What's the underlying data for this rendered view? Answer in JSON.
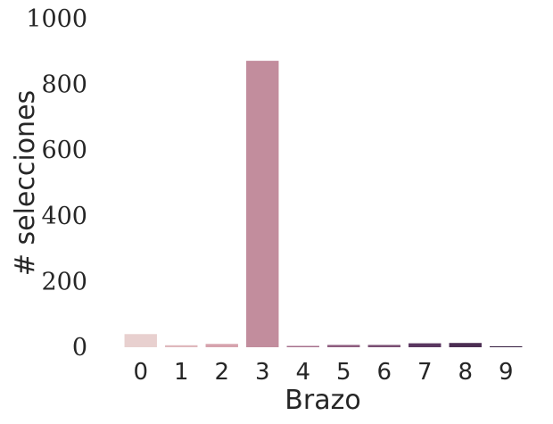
{
  "chart_data": {
    "type": "bar",
    "title": "",
    "xlabel": "Brazo",
    "ylabel": "# selecciones",
    "categories": [
      "0",
      "1",
      "2",
      "3",
      "4",
      "5",
      "6",
      "7",
      "8",
      "9"
    ],
    "values": [
      40,
      6,
      10,
      872,
      4,
      7,
      7,
      12,
      13,
      3
    ],
    "colors": [
      "#e8d0cf",
      "#dfb8bd",
      "#d6a3ad",
      "#c28d9d",
      "#a6708c",
      "#8e5d7f",
      "#7a4f73",
      "#5a3760",
      "#4c2e53",
      "#3b2444"
    ],
    "yticks": [
      0,
      200,
      400,
      600,
      800,
      1000
    ],
    "ytick_labels": [
      "0",
      "200",
      "400",
      "600",
      "800",
      "1000"
    ],
    "ylim": [
      0,
      1000
    ],
    "grid": false,
    "legend": "none"
  }
}
